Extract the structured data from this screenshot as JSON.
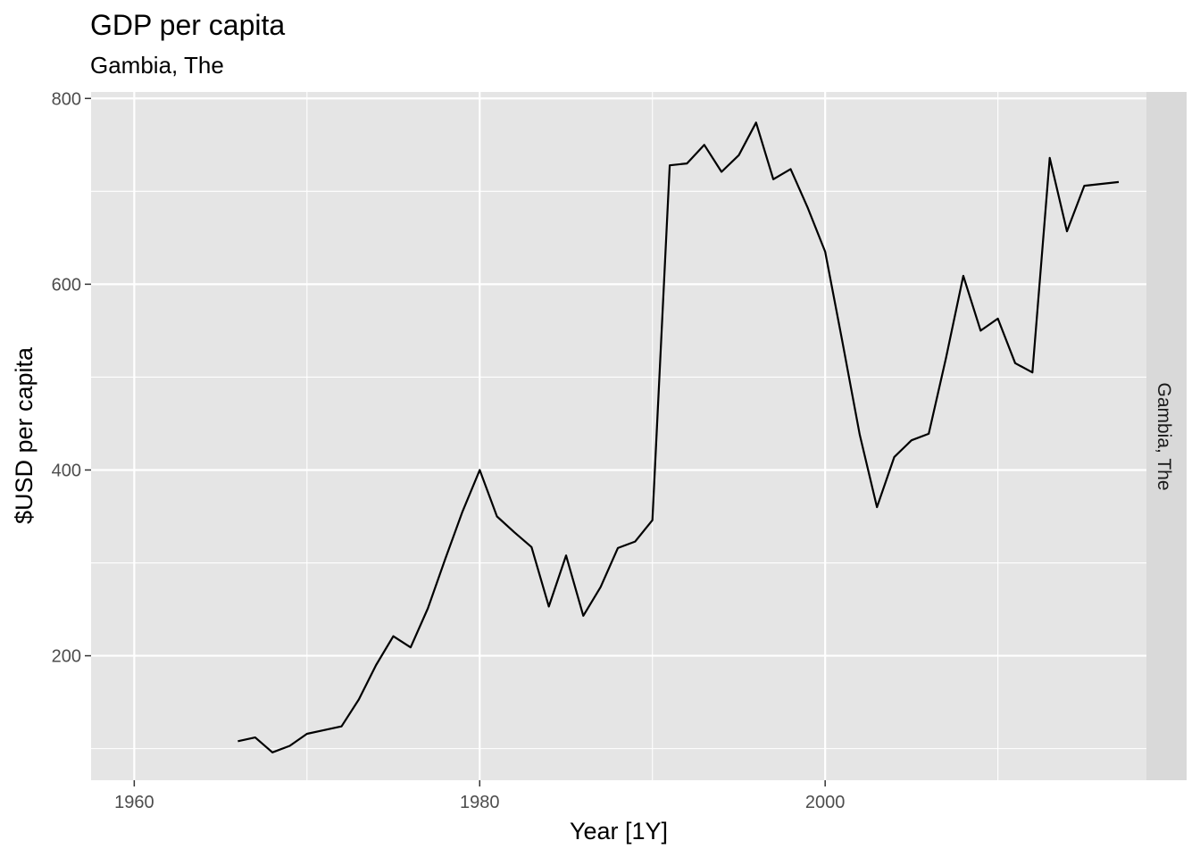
{
  "chart_data": {
    "type": "line",
    "title": "GDP per capita",
    "subtitle": "Gambia, The",
    "xlabel": "Year [1Y]",
    "ylabel": "$USD per capita",
    "facet_label": "Gambia, The",
    "xlim": [
      1957.5,
      2018.6
    ],
    "ylim": [
      66,
      807
    ],
    "x_major_ticks": [
      1960,
      1980,
      2000
    ],
    "x_minor_ticks": [
      1970,
      1990,
      2010
    ],
    "y_major_ticks": [
      200,
      400,
      600,
      800
    ],
    "y_minor_ticks": [
      100,
      300,
      500,
      700
    ],
    "grid": true,
    "colors": {
      "panel_background": "#e5e5e5",
      "grid": "#ffffff",
      "strip_background": "#d9d9d9",
      "line": "#000000"
    },
    "series": [
      {
        "x": [
          1966,
          1967,
          1968,
          1969,
          1970,
          1971,
          1972,
          1973,
          1974,
          1975,
          1976,
          1977,
          1978,
          1979,
          1980,
          1981,
          1982,
          1983,
          1984,
          1985,
          1986,
          1987,
          1988,
          1989,
          1990,
          1991,
          1992,
          1993,
          1994,
          1995,
          1996,
          1997,
          1998,
          1999,
          2000,
          2001,
          2002,
          2003,
          2004,
          2005,
          2006,
          2007,
          2008,
          2009,
          2010,
          2011,
          2012,
          2013,
          2014,
          2015,
          2016,
          2017
        ],
        "values": [
          108,
          112,
          96,
          103,
          116,
          120,
          124,
          153,
          190,
          221,
          209,
          251,
          304,
          355,
          400,
          350,
          333,
          317,
          253,
          308,
          243,
          274,
          316,
          323,
          346,
          728,
          730,
          750,
          721,
          739,
          774,
          713,
          724,
          682,
          635,
          538,
          438,
          360,
          414,
          432,
          439,
          521,
          609,
          550,
          563,
          515,
          505,
          736,
          657,
          706,
          708,
          710
        ]
      }
    ]
  }
}
